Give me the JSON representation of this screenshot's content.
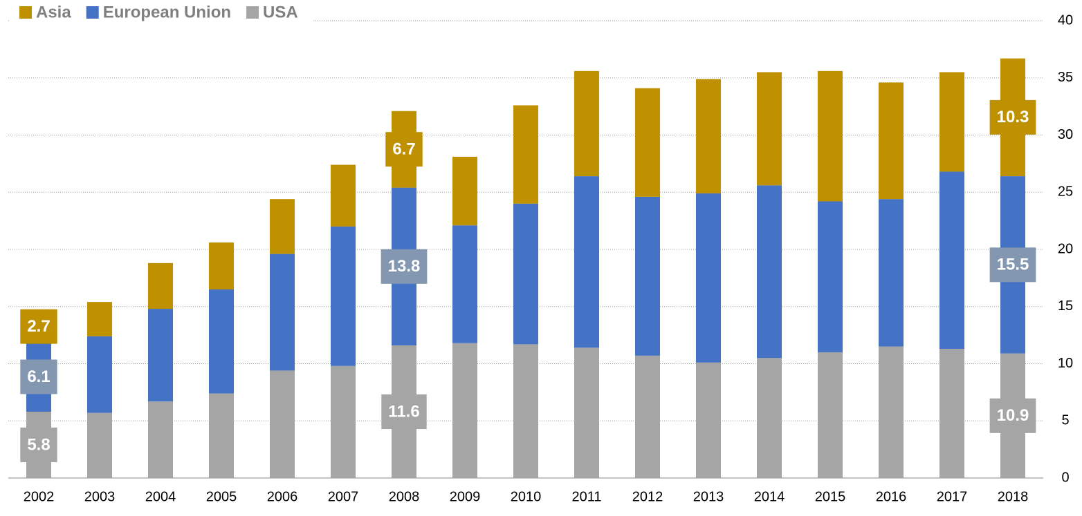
{
  "chart_data": {
    "type": "stacked_bar",
    "categories": [
      "2002",
      "2003",
      "2004",
      "2005",
      "2006",
      "2007",
      "2008",
      "2009",
      "2010",
      "2011",
      "2012",
      "2013",
      "2014",
      "2015",
      "2016",
      "2017",
      "2018"
    ],
    "series": [
      {
        "name": "USA",
        "color": "#a5a5a5",
        "label_color": "#a5a5a5",
        "values": [
          5.8,
          5.7,
          6.7,
          7.4,
          9.4,
          9.8,
          11.6,
          11.8,
          11.7,
          11.4,
          10.7,
          10.1,
          10.5,
          11.0,
          11.5,
          11.3,
          10.9
        ],
        "value_labels": [
          "5.8",
          null,
          null,
          null,
          null,
          null,
          "11.6",
          null,
          null,
          null,
          null,
          null,
          null,
          null,
          null,
          null,
          "10.9"
        ]
      },
      {
        "name": "European Union",
        "color": "#4472c4",
        "label_color": "#8497b0",
        "values": [
          6.1,
          6.7,
          8.1,
          9.1,
          10.2,
          12.2,
          13.8,
          10.3,
          12.3,
          15.0,
          13.9,
          14.8,
          15.1,
          13.2,
          12.9,
          15.5,
          15.5
        ],
        "value_labels": [
          "6.1",
          null,
          null,
          null,
          null,
          null,
          "13.8",
          null,
          null,
          null,
          null,
          null,
          null,
          null,
          null,
          null,
          "15.5"
        ]
      },
      {
        "name": "Asia",
        "color": "#bf9000",
        "label_color": "#bf9000",
        "values": [
          2.7,
          3.0,
          4.0,
          4.1,
          4.8,
          5.4,
          6.7,
          6.0,
          8.6,
          9.2,
          9.5,
          10.0,
          9.9,
          11.4,
          10.2,
          8.7,
          10.3
        ],
        "value_labels": [
          "2.7",
          null,
          null,
          null,
          null,
          null,
          "6.7",
          null,
          null,
          null,
          null,
          null,
          null,
          null,
          null,
          null,
          "10.3"
        ]
      }
    ],
    "legend_order": [
      2,
      1,
      0
    ],
    "ylim": [
      0,
      40
    ],
    "yticks": [
      0,
      5,
      10,
      15,
      20,
      25,
      30,
      35,
      40
    ],
    "grid": true,
    "y_axis_side": "right",
    "legend": "top-left"
  }
}
